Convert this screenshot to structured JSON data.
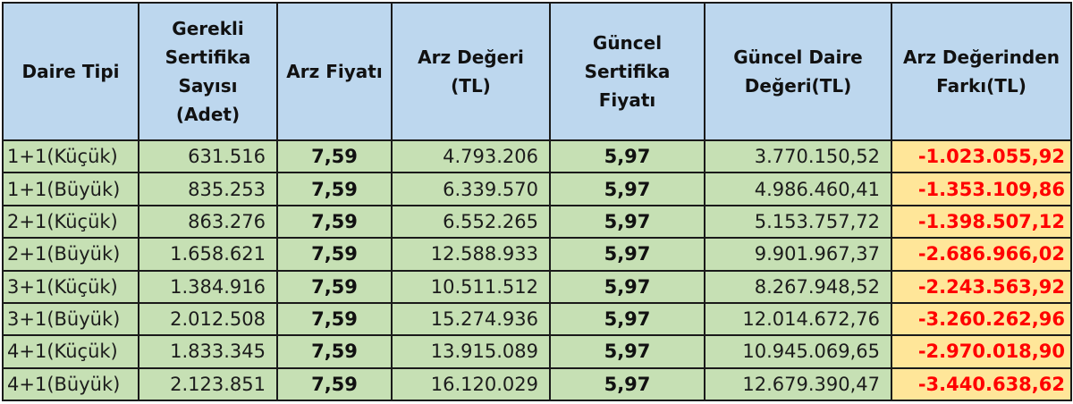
{
  "table": {
    "headers": [
      "Daire Tipi",
      "Gerekli Sertifika Sayısı (Adet)",
      "Arz Fiyatı",
      "Arz Değeri (TL)",
      "Güncel Sertifika Fiyatı",
      "Güncel Daire Değeri(TL)",
      "Arz Değerinden Farkı(TL)"
    ],
    "header_lines": [
      [
        "Daire Tipi"
      ],
      [
        "Gerekli",
        "Sertifika",
        "Sayısı",
        "(Adet)"
      ],
      [
        "Arz Fiyatı"
      ],
      [
        "Arz Değeri",
        "(TL)"
      ],
      [
        "Güncel",
        "Sertifika",
        "Fiyatı"
      ],
      [
        "Güncel Daire",
        "Değeri(TL)"
      ],
      [
        "Arz Değerinden",
        "Farkı(TL)"
      ]
    ],
    "rows": [
      [
        "1+1(Küçük)",
        "631.516",
        "7,59",
        "4.793.206",
        "5,97",
        "3.770.150,52",
        "-1.023.055,92"
      ],
      [
        "1+1(Büyük)",
        "835.253",
        "7,59",
        "6.339.570",
        "5,97",
        "4.986.460,41",
        "-1.353.109,86"
      ],
      [
        "2+1(Küçük)",
        "863.276",
        "7,59",
        "6.552.265",
        "5,97",
        "5.153.757,72",
        "-1.398.507,12"
      ],
      [
        "2+1(Büyük)",
        "1.658.621",
        "7,59",
        "12.588.933",
        "5,97",
        "9.901.967,37",
        "-2.686.966,02"
      ],
      [
        "3+1(Küçük)",
        "1.384.916",
        "7,59",
        "10.511.512",
        "5,97",
        "8.267.948,52",
        "-2.243.563,92"
      ],
      [
        "3+1(Büyük)",
        "2.012.508",
        "7,59",
        "15.274.936",
        "5,97",
        "12.014.672,76",
        "-3.260.262,96"
      ],
      [
        "4+1(Küçük)",
        "1.833.345",
        "7,59",
        "13.915.089",
        "5,97",
        "10.945.069,65",
        "-2.970.018,90"
      ],
      [
        "4+1(Büyük)",
        "2.123.851",
        "7,59",
        "16.120.029",
        "5,97",
        "12.679.390,47",
        "-3.440.638,62"
      ]
    ]
  },
  "colors": {
    "header_bg": "#bdd7ee",
    "body_bg": "#c6e0b4",
    "diff_bg": "#ffe699",
    "diff_text": "#ff0000",
    "border": "#1a1a1a"
  }
}
